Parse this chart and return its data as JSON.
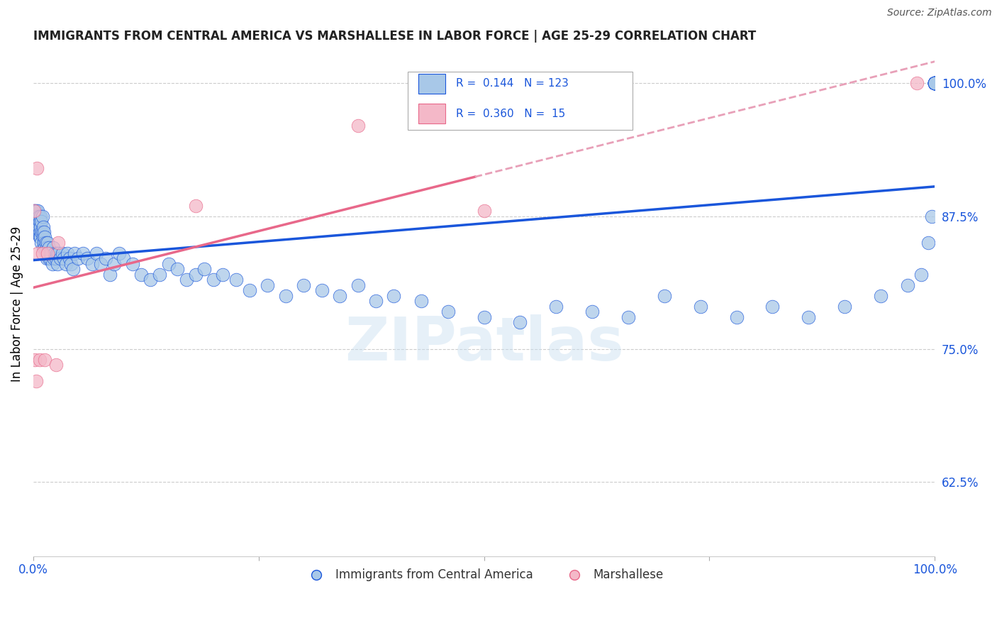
{
  "title": "IMMIGRANTS FROM CENTRAL AMERICA VS MARSHALLESE IN LABOR FORCE | AGE 25-29 CORRELATION CHART",
  "source": "Source: ZipAtlas.com",
  "ylabel": "In Labor Force | Age 25-29",
  "xlim": [
    0.0,
    1.0
  ],
  "ylim": [
    0.555,
    1.03
  ],
  "yticks": [
    0.625,
    0.75,
    0.875,
    1.0
  ],
  "ytick_labels": [
    "62.5%",
    "75.0%",
    "87.5%",
    "100.0%"
  ],
  "xticks": [
    0.0,
    0.25,
    0.5,
    0.75,
    1.0
  ],
  "xtick_labels": [
    "0.0%",
    "",
    "",
    "",
    "100.0%"
  ],
  "blue_R": "0.144",
  "blue_N": "123",
  "pink_R": "0.360",
  "pink_N": "15",
  "blue_color": "#a8c8e8",
  "pink_color": "#f4b8c8",
  "blue_line_color": "#1a56db",
  "pink_line_color": "#e8688a",
  "pink_dash_color": "#e8a0b8",
  "watermark": "ZIPatlas",
  "legend_label_blue": "Immigrants from Central America",
  "legend_label_pink": "Marshallese",
  "blue_points_x": [
    0.001,
    0.002,
    0.002,
    0.003,
    0.003,
    0.003,
    0.004,
    0.004,
    0.005,
    0.005,
    0.005,
    0.006,
    0.006,
    0.007,
    0.007,
    0.007,
    0.008,
    0.008,
    0.008,
    0.009,
    0.009,
    0.009,
    0.01,
    0.01,
    0.011,
    0.011,
    0.011,
    0.012,
    0.012,
    0.013,
    0.013,
    0.014,
    0.014,
    0.015,
    0.015,
    0.016,
    0.016,
    0.017,
    0.017,
    0.018,
    0.019,
    0.02,
    0.021,
    0.022,
    0.023,
    0.024,
    0.025,
    0.026,
    0.027,
    0.028,
    0.03,
    0.032,
    0.034,
    0.036,
    0.038,
    0.04,
    0.042,
    0.044,
    0.046,
    0.05,
    0.055,
    0.06,
    0.065,
    0.07,
    0.075,
    0.08,
    0.085,
    0.09,
    0.095,
    0.1,
    0.11,
    0.12,
    0.13,
    0.14,
    0.15,
    0.16,
    0.17,
    0.18,
    0.19,
    0.2,
    0.21,
    0.225,
    0.24,
    0.26,
    0.28,
    0.3,
    0.32,
    0.34,
    0.36,
    0.38,
    0.4,
    0.43,
    0.46,
    0.5,
    0.54,
    0.58,
    0.62,
    0.66,
    0.7,
    0.74,
    0.78,
    0.82,
    0.86,
    0.9,
    0.94,
    0.97,
    0.985,
    0.993,
    0.997,
    1.0,
    1.0,
    1.0,
    1.0,
    1.0,
    1.0,
    1.0,
    1.0,
    1.0,
    1.0,
    1.0,
    1.0,
    1.0,
    1.0
  ],
  "blue_points_y": [
    0.88,
    0.88,
    0.86,
    0.87,
    0.88,
    0.875,
    0.87,
    0.865,
    0.88,
    0.87,
    0.86,
    0.875,
    0.865,
    0.87,
    0.86,
    0.855,
    0.875,
    0.865,
    0.855,
    0.87,
    0.86,
    0.85,
    0.875,
    0.86,
    0.865,
    0.855,
    0.845,
    0.86,
    0.85,
    0.855,
    0.845,
    0.85,
    0.84,
    0.845,
    0.835,
    0.85,
    0.84,
    0.845,
    0.835,
    0.84,
    0.835,
    0.84,
    0.83,
    0.845,
    0.835,
    0.84,
    0.835,
    0.84,
    0.83,
    0.84,
    0.835,
    0.84,
    0.835,
    0.83,
    0.84,
    0.835,
    0.83,
    0.825,
    0.84,
    0.835,
    0.84,
    0.835,
    0.83,
    0.84,
    0.83,
    0.835,
    0.82,
    0.83,
    0.84,
    0.835,
    0.83,
    0.82,
    0.815,
    0.82,
    0.83,
    0.825,
    0.815,
    0.82,
    0.825,
    0.815,
    0.82,
    0.815,
    0.805,
    0.81,
    0.8,
    0.81,
    0.805,
    0.8,
    0.81,
    0.795,
    0.8,
    0.795,
    0.785,
    0.78,
    0.775,
    0.79,
    0.785,
    0.78,
    0.8,
    0.79,
    0.78,
    0.79,
    0.78,
    0.79,
    0.8,
    0.81,
    0.82,
    0.85,
    0.875,
    1.0,
    1.0,
    1.0,
    1.0,
    1.0,
    1.0,
    1.0,
    1.0,
    1.0,
    1.0,
    1.0,
    1.0,
    1.0,
    1.0
  ],
  "pink_points_x": [
    0.001,
    0.002,
    0.003,
    0.004,
    0.005,
    0.007,
    0.01,
    0.013,
    0.016,
    0.025,
    0.028,
    0.18,
    0.36,
    0.5,
    0.98
  ],
  "pink_points_y": [
    0.88,
    0.74,
    0.72,
    0.92,
    0.84,
    0.74,
    0.84,
    0.74,
    0.84,
    0.735,
    0.85,
    0.885,
    0.96,
    0.88,
    1.0
  ]
}
